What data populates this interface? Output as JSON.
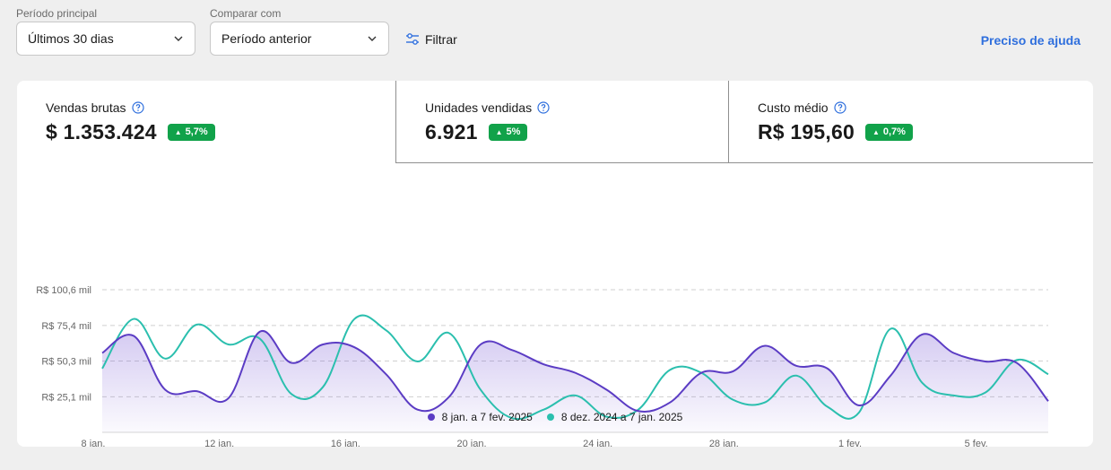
{
  "filters": {
    "period_label": "Período principal",
    "period_value": "Últimos 30 dias",
    "compare_label": "Comparar com",
    "compare_value": "Período anterior",
    "filter_button": "Filtrar"
  },
  "help_link": "Preciso de ajuda",
  "kpis": [
    {
      "title": "Vendas brutas",
      "value": "$ 1.353.424",
      "change": "5,7%"
    },
    {
      "title": "Unidades vendidas",
      "value": "6.921",
      "change": "5%"
    },
    {
      "title": "Custo médio",
      "value": "R$ 195,60",
      "change": "0,7%"
    }
  ],
  "colors": {
    "current": "#5b3cc4",
    "previous": "#2bbfae",
    "badge": "#11a24a",
    "link": "#2f6fdd"
  },
  "chart_data": {
    "type": "line",
    "y_tick_labels": [
      "R$ 25,1 mil",
      "R$ 50,3 mil",
      "R$ 75,4 mil",
      "R$ 100,6 mil"
    ],
    "y_ticks": [
      25.1,
      50.3,
      75.4,
      100.6
    ],
    "ylim": [
      0,
      100.6
    ],
    "x_tick_labels": [
      "8 jan.",
      "12 jan.",
      "16 jan.",
      "20 jan.",
      "24 jan.",
      "28 jan.",
      "1 fev.",
      "5 fev."
    ],
    "grid": true,
    "series": [
      {
        "name": "8 jan. a 7 fev. 2025",
        "values": [
          56,
          68,
          30,
          29,
          24,
          71,
          49,
          62,
          60,
          41,
          16,
          25,
          62,
          58,
          48,
          42,
          30,
          15,
          21,
          42,
          43,
          61,
          47,
          45,
          19,
          40,
          69,
          56,
          50,
          49,
          22
        ]
      },
      {
        "name": "8 dez. 2024 a 7 jan. 2025",
        "values": [
          45,
          80,
          52,
          76,
          62,
          66,
          27,
          32,
          80,
          72,
          50,
          70,
          30,
          10,
          16,
          26,
          11,
          16,
          44,
          42,
          23,
          21,
          40,
          18,
          14,
          73,
          35,
          26,
          28,
          51,
          41
        ]
      }
    ]
  }
}
